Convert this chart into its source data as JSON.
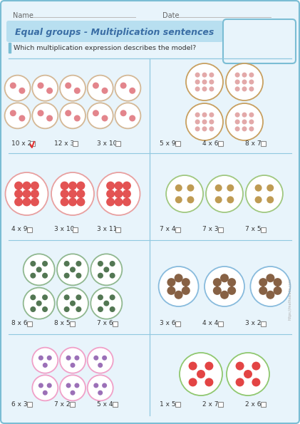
{
  "title": "Equal groups - Multiplication sentences",
  "subtitle": "Which multiplication expression describes the model?",
  "name_label": "Name",
  "date_label": "Date",
  "bg_color": "#e8f4fb",
  "outer_border_color": "#7bbdd4",
  "title_bg": "#b8dff0",
  "title_color": "#3a6ea5",
  "divider_color": "#90c8e0",
  "subtitle_bar_color": "#7bbdd4",
  "text_color": "#444444",
  "watermark": "https://mathsalade.com",
  "row1_left": {
    "n_circles": 10,
    "layout": "2x5",
    "circle_r": 18,
    "circle_color": "#d4b896",
    "item_color": "#e07880",
    "item_r": 4.5,
    "n_items": 2,
    "options": [
      "10 x 2",
      "12 x 3",
      "3 x 10"
    ],
    "correct": 0
  },
  "row1_right": {
    "n_circles": 4,
    "layout": "2x2",
    "circle_r": 26,
    "circle_color": "#c8a060",
    "item_color": "#e0a0a0",
    "item_r": 3.5,
    "n_items": 9,
    "options": [
      "5 x 9",
      "4 x 6",
      "8 x 7"
    ],
    "correct": -1
  },
  "row2_left": {
    "n_circles": 3,
    "layout": "1x3",
    "circle_r": 30,
    "circle_color": "#e8a0a0",
    "item_color": "#e04040",
    "item_r": 6,
    "n_items": 9,
    "options": [
      "4 x 9",
      "3 x 10",
      "3 x 11"
    ],
    "correct": -1
  },
  "row2_right": {
    "n_circles": 3,
    "layout": "1x3",
    "circle_r": 26,
    "circle_color": "#a0c880",
    "item_color": "#b89040",
    "item_r": 5,
    "n_items": 4,
    "options": [
      "7 x 4",
      "7 x 3",
      "7 x 5"
    ],
    "correct": -1
  },
  "row3_left": {
    "n_circles": 6,
    "layout": "2x3",
    "circle_r": 22,
    "circle_color": "#90b890",
    "item_color": "#406840",
    "item_r": 4,
    "n_items": 5,
    "options": [
      "8 x 6",
      "8 x 5",
      "7 x 6"
    ],
    "correct": -1
  },
  "row3_right": {
    "n_circles": 3,
    "layout": "1x3_wide",
    "circle_r": 28,
    "circle_color": "#88bbdd",
    "item_color": "#7a5030",
    "item_r": 6,
    "n_items": 6,
    "options": [
      "3 x 6",
      "4 x 4",
      "3 x 2"
    ],
    "correct": -1
  },
  "row4_left": {
    "n_circles": 6,
    "layout": "2x3",
    "circle_r": 18,
    "circle_color": "#f0a0c8",
    "item_color": "#9060b0",
    "item_r": 3.5,
    "n_items": 3,
    "options": [
      "6 x 3",
      "7 x 2",
      "5 x 4"
    ],
    "correct": -1
  },
  "row4_right": {
    "n_circles": 2,
    "layout": "1x2",
    "circle_r": 30,
    "circle_color": "#90c870",
    "item_color": "#e03030",
    "item_r": 6,
    "n_items": 5,
    "options": [
      "1 x 5",
      "2 x 7",
      "2 x 6"
    ],
    "correct": -1
  }
}
